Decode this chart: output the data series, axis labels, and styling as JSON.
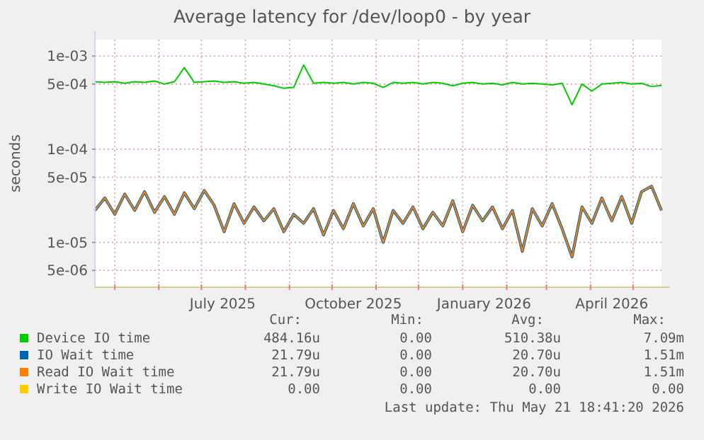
{
  "chart_data": {
    "type": "line",
    "title": "Average latency for /dev/loop0 - by year",
    "ylabel": "seconds",
    "log": true,
    "grid": true,
    "legend": "bottom",
    "ylim": [
      3.3e-06,
      0.0015
    ],
    "yticks": [
      {
        "value": 5e-06,
        "label": "5e-06"
      },
      {
        "value": 1e-05,
        "label": "1e-05"
      },
      {
        "value": 5e-05,
        "label": "5e-05"
      },
      {
        "value": 0.0001,
        "label": "1e-04"
      },
      {
        "value": 0.0005,
        "label": "5e-04"
      },
      {
        "value": 0.001,
        "label": "1e-03"
      }
    ],
    "xlim": [
      "2025-04-17",
      "2026-05-21"
    ],
    "xticks": [
      {
        "value": "2025-05-01",
        "label": null
      },
      {
        "value": "2025-06-01",
        "label": null
      },
      {
        "value": "2025-07-01",
        "label": null
      },
      {
        "value": "2025-07-16",
        "label": "July 2025"
      },
      {
        "value": "2025-08-01",
        "label": null
      },
      {
        "value": "2025-09-01",
        "label": null
      },
      {
        "value": "2025-10-01",
        "label": null
      },
      {
        "value": "2025-10-16",
        "label": "October 2025"
      },
      {
        "value": "2025-11-01",
        "label": null
      },
      {
        "value": "2025-12-01",
        "label": null
      },
      {
        "value": "2026-01-01",
        "label": null
      },
      {
        "value": "2026-01-16",
        "label": "January 2026"
      },
      {
        "value": "2026-02-01",
        "label": null
      },
      {
        "value": "2026-03-01",
        "label": null
      },
      {
        "value": "2026-04-01",
        "label": null
      },
      {
        "value": "2026-04-16",
        "label": "April 2026"
      },
      {
        "value": "2026-05-01",
        "label": null
      }
    ],
    "x": [
      "2025-04-17",
      "2025-04-24",
      "2025-05-01",
      "2025-05-08",
      "2025-05-15",
      "2025-05-22",
      "2025-05-29",
      "2025-06-05",
      "2025-06-12",
      "2025-06-19",
      "2025-06-26",
      "2025-07-03",
      "2025-07-10",
      "2025-07-17",
      "2025-07-24",
      "2025-07-31",
      "2025-08-07",
      "2025-08-14",
      "2025-08-21",
      "2025-08-28",
      "2025-09-04",
      "2025-09-11",
      "2025-09-18",
      "2025-09-25",
      "2025-10-02",
      "2025-10-09",
      "2025-10-16",
      "2025-10-23",
      "2025-10-30",
      "2025-11-06",
      "2025-11-13",
      "2025-11-20",
      "2025-11-27",
      "2025-12-04",
      "2025-12-11",
      "2025-12-18",
      "2025-12-25",
      "2026-01-01",
      "2026-01-08",
      "2026-01-15",
      "2026-01-22",
      "2026-01-29",
      "2026-02-05",
      "2026-02-12",
      "2026-02-19",
      "2026-02-26",
      "2026-03-05",
      "2026-03-12",
      "2026-03-19",
      "2026-03-26",
      "2026-04-02",
      "2026-04-09",
      "2026-04-16",
      "2026-04-23",
      "2026-04-30",
      "2026-05-07",
      "2026-05-14",
      "2026-05-21"
    ],
    "series": [
      {
        "name": "Device IO time",
        "color": "#00cc00",
        "values": [
          0.00053,
          0.00052,
          0.00053,
          0.00051,
          0.00053,
          0.00052,
          0.00054,
          0.0005,
          0.00053,
          0.00075,
          0.00052,
          0.00053,
          0.00054,
          0.00052,
          0.00053,
          0.00051,
          0.00052,
          0.0005,
          0.00048,
          0.00045,
          0.00046,
          0.0008,
          0.00051,
          0.00052,
          0.00051,
          0.00052,
          0.0005,
          0.00052,
          0.00051,
          0.00046,
          0.00052,
          0.00051,
          0.00052,
          0.0005,
          0.00052,
          0.00051,
          0.00048,
          0.00051,
          0.00052,
          0.0005,
          0.00051,
          0.00049,
          0.00052,
          0.0005,
          0.00051,
          0.0005,
          0.00049,
          0.00051,
          0.0003,
          0.0005,
          0.00042,
          0.0005,
          0.00051,
          0.00052,
          0.0005,
          0.00051,
          0.00047,
          0.000484
        ]
      },
      {
        "name": "IO Wait time",
        "color": "#0066b3",
        "values": [
          2.2e-05,
          3e-05,
          2e-05,
          3.3e-05,
          2.2e-05,
          3.5e-05,
          2.1e-05,
          3.1e-05,
          2e-05,
          3.4e-05,
          2.3e-05,
          3.6e-05,
          2.5e-05,
          1.3e-05,
          2.6e-05,
          1.6e-05,
          2.4e-05,
          1.7e-05,
          2.3e-05,
          1.3e-05,
          2e-05,
          1.6e-05,
          2.3e-05,
          1.2e-05,
          2.2e-05,
          1.4e-05,
          2.6e-05,
          1.5e-05,
          2.3e-05,
          1e-05,
          2.2e-05,
          1.6e-05,
          2.4e-05,
          1.4e-05,
          2.1e-05,
          1.5e-05,
          2.8e-05,
          1.3e-05,
          2.5e-05,
          1.7e-05,
          2.4e-05,
          1.4e-05,
          2.2e-05,
          8e-06,
          2.3e-05,
          1.5e-05,
          2.6e-05,
          1.4e-05,
          7e-06,
          2.4e-05,
          1.6e-05,
          3e-05,
          1.7e-05,
          3.1e-05,
          1.6e-05,
          3.5e-05,
          4e-05,
          2.2e-05
        ]
      },
      {
        "name": "Read IO Wait time",
        "color": "#ff8000",
        "values": [
          2.2e-05,
          3e-05,
          2e-05,
          3.3e-05,
          2.2e-05,
          3.5e-05,
          2.1e-05,
          3.1e-05,
          2e-05,
          3.4e-05,
          2.3e-05,
          3.6e-05,
          2.5e-05,
          1.3e-05,
          2.6e-05,
          1.6e-05,
          2.4e-05,
          1.7e-05,
          2.3e-05,
          1.3e-05,
          2e-05,
          1.6e-05,
          2.3e-05,
          1.2e-05,
          2.2e-05,
          1.4e-05,
          2.6e-05,
          1.5e-05,
          2.3e-05,
          1e-05,
          2.2e-05,
          1.6e-05,
          2.4e-05,
          1.4e-05,
          2.1e-05,
          1.5e-05,
          2.8e-05,
          1.3e-05,
          2.5e-05,
          1.7e-05,
          2.4e-05,
          1.4e-05,
          2.2e-05,
          8e-06,
          2.3e-05,
          1.5e-05,
          2.6e-05,
          1.4e-05,
          7e-06,
          2.4e-05,
          1.6e-05,
          3e-05,
          1.7e-05,
          3.1e-05,
          1.6e-05,
          3.5e-05,
          4e-05,
          2.2e-05
        ]
      },
      {
        "name": "Write IO Wait time",
        "color": "#ffcc00",
        "values": [
          null,
          null,
          null,
          null,
          null,
          null,
          null,
          null,
          null,
          null,
          null,
          null,
          null,
          null,
          null,
          null,
          null,
          null,
          null,
          null,
          null,
          null,
          null,
          null,
          null,
          null,
          null,
          null,
          null,
          null,
          null,
          null,
          null,
          null,
          null,
          null,
          null,
          null,
          null,
          null,
          null,
          null,
          null,
          null,
          null,
          null,
          null,
          null,
          null,
          null,
          null,
          null,
          null,
          null,
          null,
          null,
          null,
          null
        ]
      }
    ],
    "annotations": [
      "Cur:",
      "Min:",
      "Avg:",
      "Max:",
      "484.16u",
      "0.00",
      "510.38u",
      "7.09m",
      "21.79u",
      "0.00",
      "20.70u",
      "1.51m",
      "21.79u",
      "0.00",
      "20.70u",
      "1.51m",
      "0.00",
      "0.00",
      "0.00",
      "0.00",
      "Last update: Thu May 21 18:41:20 2026"
    ]
  }
}
